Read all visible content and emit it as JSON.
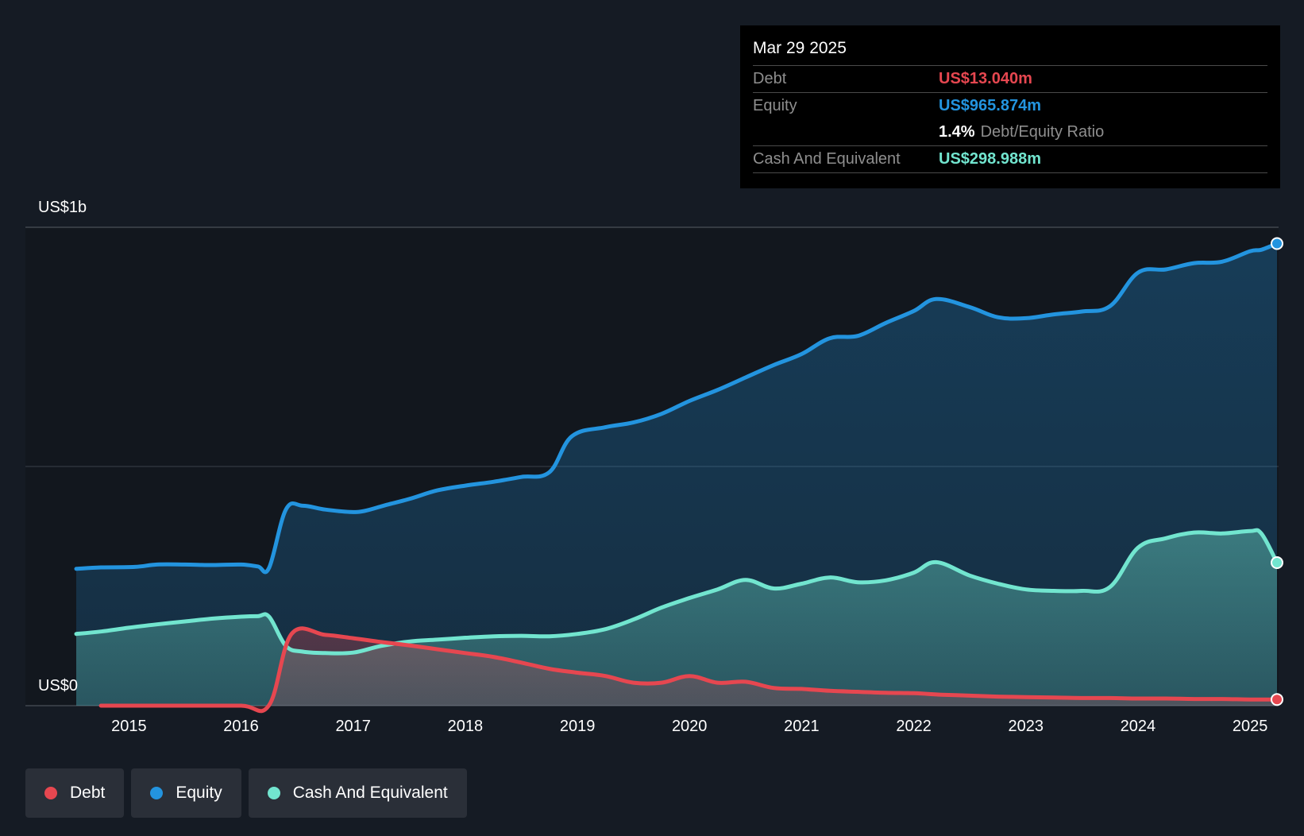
{
  "colors": {
    "debt": "#e64750",
    "equity": "#2394df",
    "cash": "#72e5cf",
    "background": "#151b24",
    "plot_background": "#12171e",
    "grid": "#3a404a"
  },
  "tooltip": {
    "date": "Mar 29 2025",
    "debt_label": "Debt",
    "debt_value": "US$13.040m",
    "equity_label": "Equity",
    "equity_value": "US$965.874m",
    "ratio_value": "1.4%",
    "ratio_label": "Debt/Equity Ratio",
    "cash_label": "Cash And Equivalent",
    "cash_value": "US$298.988m"
  },
  "y_axis": {
    "top_label": "US$1b",
    "bottom_label": "US$0"
  },
  "legend": [
    {
      "key": "debt",
      "label": "Debt"
    },
    {
      "key": "equity",
      "label": "Equity"
    },
    {
      "key": "cash",
      "label": "Cash And Equivalent"
    }
  ],
  "chart_data": {
    "type": "area",
    "title": "",
    "xlabel": "",
    "ylabel": "",
    "units": "US$ millions",
    "xlim": [
      2014.53,
      2025.24
    ],
    "ylim": [
      0,
      1000
    ],
    "x_ticks": [
      2015,
      2016,
      2017,
      2018,
      2019,
      2020,
      2021,
      2022,
      2023,
      2024,
      2025
    ],
    "x_tick_labels": [
      "2015",
      "2016",
      "2017",
      "2018",
      "2019",
      "2020",
      "2021",
      "2022",
      "2023",
      "2024",
      "2025"
    ],
    "grid": true,
    "legend_position": "bottom-left",
    "series": [
      {
        "name": "Equity",
        "key": "equity",
        "points": [
          [
            2014.53,
            286
          ],
          [
            2014.75,
            289
          ],
          [
            2015.05,
            290
          ],
          [
            2015.25,
            295
          ],
          [
            2015.5,
            295
          ],
          [
            2015.75,
            294
          ],
          [
            2016.0,
            295
          ],
          [
            2016.15,
            291
          ],
          [
            2016.25,
            288
          ],
          [
            2016.4,
            410
          ],
          [
            2016.55,
            418
          ],
          [
            2016.75,
            410
          ],
          [
            2016.97,
            405
          ],
          [
            2017.1,
            407
          ],
          [
            2017.3,
            420
          ],
          [
            2017.5,
            432
          ],
          [
            2017.75,
            450
          ],
          [
            2018.0,
            460
          ],
          [
            2018.25,
            468
          ],
          [
            2018.5,
            478
          ],
          [
            2018.75,
            488
          ],
          [
            2018.95,
            563
          ],
          [
            2019.25,
            582
          ],
          [
            2019.5,
            592
          ],
          [
            2019.75,
            610
          ],
          [
            2020.0,
            637
          ],
          [
            2020.25,
            660
          ],
          [
            2020.5,
            686
          ],
          [
            2020.75,
            712
          ],
          [
            2021.0,
            735
          ],
          [
            2021.25,
            768
          ],
          [
            2021.5,
            773
          ],
          [
            2021.75,
            800
          ],
          [
            2022.0,
            825
          ],
          [
            2022.2,
            850
          ],
          [
            2022.5,
            833
          ],
          [
            2022.75,
            812
          ],
          [
            2023.0,
            810
          ],
          [
            2023.25,
            818
          ],
          [
            2023.5,
            824
          ],
          [
            2023.75,
            835
          ],
          [
            2024.0,
            905
          ],
          [
            2024.25,
            912
          ],
          [
            2024.5,
            925
          ],
          [
            2024.75,
            928
          ],
          [
            2025.0,
            950
          ],
          [
            2025.1,
            953
          ],
          [
            2025.24,
            966
          ]
        ]
      },
      {
        "name": "Cash And Equivalent",
        "key": "cash",
        "points": [
          [
            2014.53,
            150
          ],
          [
            2014.75,
            155
          ],
          [
            2015.0,
            163
          ],
          [
            2015.25,
            170
          ],
          [
            2015.5,
            176
          ],
          [
            2015.75,
            182
          ],
          [
            2016.0,
            186
          ],
          [
            2016.15,
            187
          ],
          [
            2016.25,
            186
          ],
          [
            2016.4,
            125
          ],
          [
            2016.55,
            113
          ],
          [
            2016.75,
            110
          ],
          [
            2017.0,
            111
          ],
          [
            2017.25,
            125
          ],
          [
            2017.5,
            134
          ],
          [
            2017.75,
            138
          ],
          [
            2018.0,
            142
          ],
          [
            2018.25,
            145
          ],
          [
            2018.5,
            146
          ],
          [
            2018.75,
            145
          ],
          [
            2019.0,
            150
          ],
          [
            2019.25,
            160
          ],
          [
            2019.5,
            180
          ],
          [
            2019.75,
            205
          ],
          [
            2020.0,
            225
          ],
          [
            2020.25,
            243
          ],
          [
            2020.5,
            263
          ],
          [
            2020.75,
            245
          ],
          [
            2021.0,
            255
          ],
          [
            2021.25,
            268
          ],
          [
            2021.5,
            258
          ],
          [
            2021.75,
            262
          ],
          [
            2022.0,
            278
          ],
          [
            2022.2,
            300
          ],
          [
            2022.5,
            272
          ],
          [
            2022.75,
            255
          ],
          [
            2023.0,
            243
          ],
          [
            2023.25,
            240
          ],
          [
            2023.5,
            240
          ],
          [
            2023.75,
            248
          ],
          [
            2024.0,
            330
          ],
          [
            2024.25,
            350
          ],
          [
            2024.5,
            362
          ],
          [
            2024.75,
            360
          ],
          [
            2025.0,
            365
          ],
          [
            2025.1,
            360
          ],
          [
            2025.24,
            299
          ]
        ]
      },
      {
        "name": "Debt",
        "key": "debt",
        "points": [
          [
            2014.75,
            0
          ],
          [
            2015.0,
            0
          ],
          [
            2015.5,
            0
          ],
          [
            2016.0,
            0
          ],
          [
            2016.25,
            1
          ],
          [
            2016.45,
            150
          ],
          [
            2016.75,
            148
          ],
          [
            2017.0,
            141
          ],
          [
            2017.25,
            133
          ],
          [
            2017.5,
            126
          ],
          [
            2017.75,
            118
          ],
          [
            2018.0,
            110
          ],
          [
            2018.25,
            102
          ],
          [
            2018.5,
            90
          ],
          [
            2018.75,
            77
          ],
          [
            2019.0,
            69
          ],
          [
            2019.25,
            62
          ],
          [
            2019.5,
            48
          ],
          [
            2019.75,
            48
          ],
          [
            2020.0,
            62
          ],
          [
            2020.25,
            48
          ],
          [
            2020.5,
            50
          ],
          [
            2020.75,
            37
          ],
          [
            2021.0,
            35
          ],
          [
            2021.25,
            31
          ],
          [
            2021.5,
            29
          ],
          [
            2021.75,
            27
          ],
          [
            2022.0,
            26
          ],
          [
            2022.25,
            23
          ],
          [
            2022.5,
            21
          ],
          [
            2022.75,
            19
          ],
          [
            2023.0,
            18
          ],
          [
            2023.25,
            17
          ],
          [
            2023.5,
            16
          ],
          [
            2023.75,
            16
          ],
          [
            2024.0,
            15
          ],
          [
            2024.25,
            15
          ],
          [
            2024.5,
            14
          ],
          [
            2024.75,
            14
          ],
          [
            2025.0,
            13
          ],
          [
            2025.24,
            13
          ]
        ]
      }
    ]
  }
}
